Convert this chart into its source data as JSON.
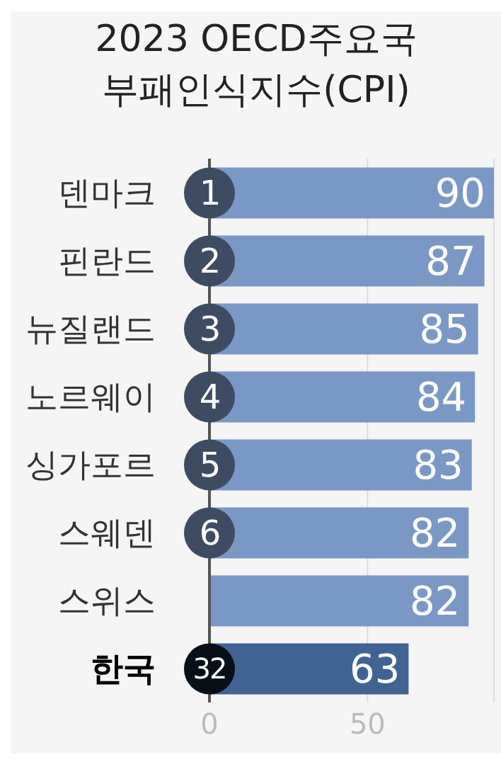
{
  "chart_data": {
    "type": "bar",
    "orientation": "horizontal",
    "title": "2023 OECD주요국\n부패인식지수(CPI)",
    "categories": [
      "덴마크",
      "핀란드",
      "뉴질랜드",
      "노르웨이",
      "싱가포르",
      "스웨덴",
      "스위스",
      "한국"
    ],
    "values": [
      90,
      87,
      85,
      84,
      83,
      82,
      82,
      63
    ],
    "colors": [
      "#7a98c6",
      "#7a98c6",
      "#7a98c6",
      "#7a98c6",
      "#7a98c6",
      "#7a98c6",
      "#7a98c6",
      "#3f6393"
    ],
    "xlim": [
      0,
      90
    ],
    "xticks": [
      0,
      50
    ],
    "grid": "x",
    "data_labels": true,
    "annotations": [
      {
        "text": "1",
        "y": "덴마크"
      },
      {
        "text": "2",
        "y": "핀란드"
      },
      {
        "text": "3",
        "y": "뉴질랜드"
      },
      {
        "text": "4",
        "y": "노르웨이"
      },
      {
        "text": "5",
        "y": "싱가포르"
      },
      {
        "text": "6",
        "y": "스웨덴"
      },
      {
        "text": "32",
        "y": "한국"
      }
    ]
  }
}
